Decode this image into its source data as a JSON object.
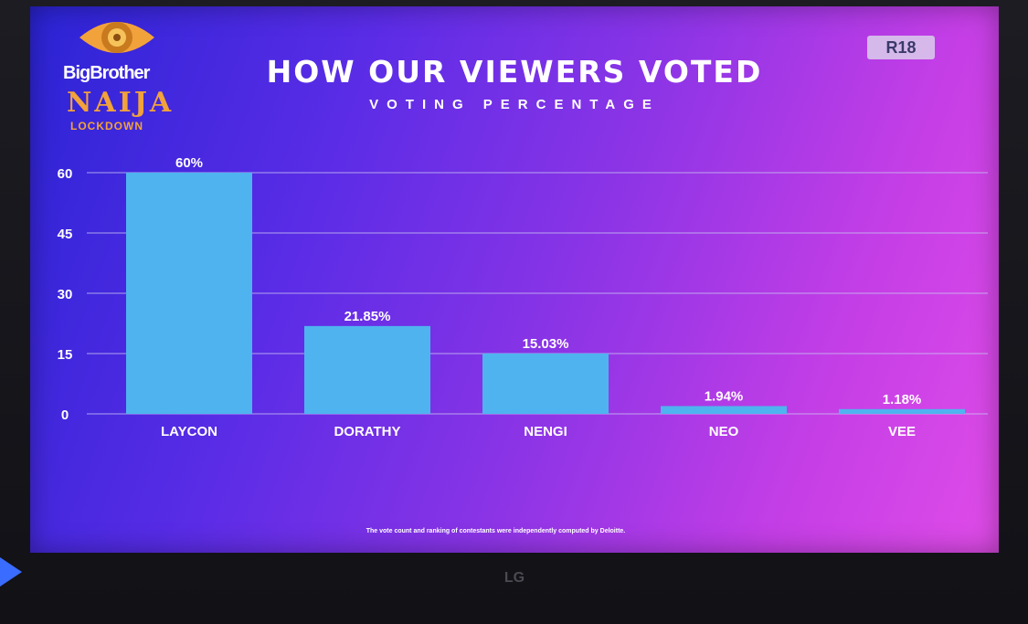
{
  "show": {
    "logo_line1": "BigBrother",
    "logo_line2": "NAIJA",
    "logo_line3": "LOCKDOWN"
  },
  "rating_badge": "R18",
  "footnote": "The vote count and ranking of contestants were independently computed by Deloitte.",
  "tv_brand": "LG",
  "colors": {
    "bar": "#4fb3ef",
    "grid": "#c9c2f2",
    "text": "#ffffff"
  },
  "chart_data": {
    "type": "bar",
    "title": "HOW OUR VIEWERS VOTED",
    "subtitle": "VOTING PERCENTAGE",
    "categories": [
      "LAYCON",
      "DORATHY",
      "NENGI",
      "NEO",
      "VEE"
    ],
    "values": [
      60,
      21.85,
      15.03,
      1.94,
      1.18
    ],
    "data_labels": [
      "60%",
      "21.85%",
      "15.03%",
      "1.94%",
      "1.18%"
    ],
    "y_ticks": [
      0,
      15,
      30,
      45,
      60
    ],
    "ylim": [
      0,
      60
    ],
    "grid": true,
    "legend": "none"
  }
}
